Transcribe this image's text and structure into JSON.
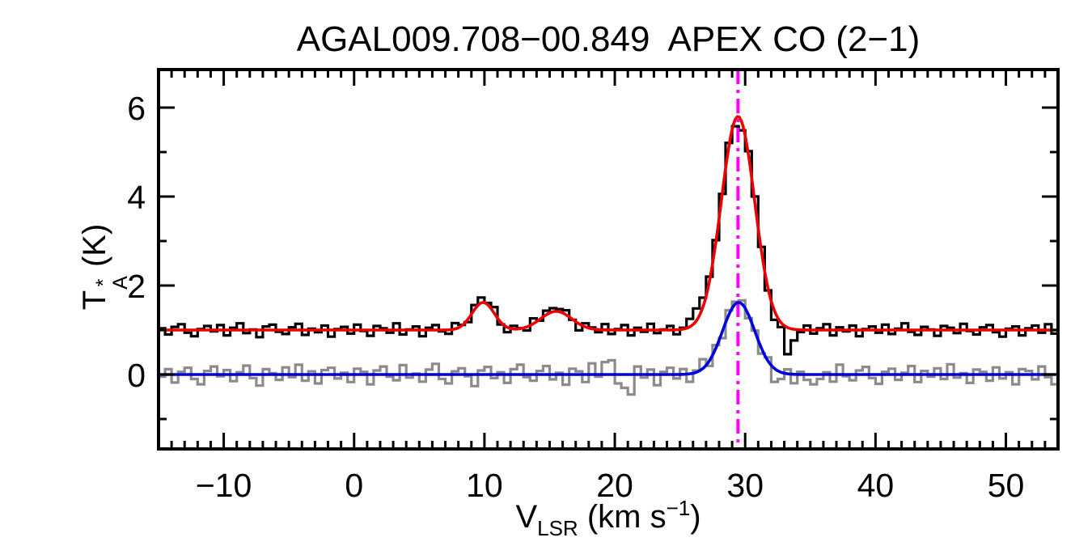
{
  "labels": {
    "xlabel": {
      "base": "V",
      "sub": "LSR",
      "mid": " (km s",
      "sup": "−1",
      "end": ")"
    },
    "ylabel": {
      "base": "T",
      "sup": "*",
      "sub": "A",
      "unit": " (K)"
    }
  },
  "chart_data": {
    "type": "line",
    "title": "AGAL009.708−00.849  APEX CO (2−1)",
    "xlabel": "V_LSR (km s−1)",
    "ylabel": "T*_A (K)",
    "xlim": [
      -15.0,
      54.0
    ],
    "ylim": [
      -1.673,
      6.855
    ],
    "x_major_ticks": [
      -10,
      0,
      10,
      20,
      30,
      40,
      50
    ],
    "x_minor_step": 1,
    "y_major_ticks": [
      0,
      2,
      4,
      6
    ],
    "y_minor_step": 1,
    "grid": false,
    "legend": false,
    "frame_color": "#000000",
    "x_start": -15.0,
    "x_step": 0.5,
    "vline": {
      "x": 29.45,
      "color": "#ff00ff",
      "style": "dash-dot",
      "name": "systemic-velocity-marker"
    },
    "series": [
      {
        "name": "observed-spectrum-gray",
        "style": "histogram",
        "color": "#8b8b8b",
        "baseline": 0.0,
        "gaussians": [
          {
            "center": 29.5,
            "amplitude": 1.62,
            "fwhm": 2.9
          }
        ],
        "noise": [
          -0.05,
          0.12,
          -0.18,
          0.06,
          0.15,
          -0.1,
          -0.22,
          0.08,
          0.18,
          -0.04,
          0.1,
          -0.15,
          0.05,
          0.2,
          -0.08,
          -0.25,
          0.12,
          0.03,
          -0.12,
          0.16,
          -0.06,
          0.22,
          -0.14,
          0.07,
          -0.2,
          0.1,
          0.15,
          -0.09,
          0.04,
          -0.17,
          0.13,
          0.06,
          -0.22,
          0.09,
          0.18,
          -0.05,
          -0.13,
          0.21,
          -0.07,
          0.02,
          -0.16,
          0.11,
          0.24,
          -0.1,
          -0.2,
          0.07,
          0.14,
          -0.04,
          -0.26,
          0.09,
          0.17,
          -0.08,
          0.05,
          -0.19,
          0.12,
          0.22,
          -0.06,
          -0.14,
          0.08,
          0.19,
          -0.11,
          0.04,
          -0.23,
          0.13,
          0.07,
          -0.17,
          0.25,
          -0.05,
          0.28,
          0.32,
          -0.2,
          -0.3,
          -0.45,
          0.18,
          -0.07,
          0.11,
          -0.24,
          0.06,
          0.15,
          -0.09,
          0.12,
          -0.18,
          0.04,
          0.21,
          -0.11,
          0.07,
          -0.15,
          0.1,
          0.05,
          0.08,
          -0.08,
          0.02,
          -0.12,
          0.08,
          -0.3,
          -0.15,
          0.1,
          -0.2,
          0.06,
          -0.12,
          -0.22,
          -0.1,
          0.05,
          -0.16,
          0.22,
          -0.04,
          -0.13,
          0.09,
          0.17,
          -0.08,
          -0.21,
          0.06,
          0.13,
          -0.12,
          0.04,
          0.19,
          -0.17,
          0.08,
          -0.05,
          0.14,
          -0.1,
          0.23,
          -0.07,
          0.03,
          -0.19,
          0.11,
          0.06,
          -0.14,
          0.16,
          -0.09,
          0.05,
          -0.22,
          0.12,
          0.08,
          -0.11,
          0.18,
          -0.06,
          -0.22
        ]
      },
      {
        "name": "observed-spectrum-black-offset-1K",
        "style": "histogram",
        "color": "#000000",
        "baseline": 1.0,
        "gaussians": [
          {
            "center": 9.9,
            "amplitude": 0.62,
            "fwhm": 2.0
          },
          {
            "center": 15.5,
            "amplitude": 0.42,
            "fwhm": 2.8
          },
          {
            "center": 29.45,
            "amplitude": 4.8,
            "fwhm": 3.0
          }
        ],
        "noise": [
          0.04,
          -0.1,
          0.07,
          0.13,
          -0.06,
          -0.14,
          0.02,
          0.09,
          -0.03,
          0.11,
          -0.12,
          0.05,
          0.15,
          -0.07,
          0.01,
          -0.16,
          0.08,
          0.12,
          -0.04,
          -0.09,
          0.06,
          0.14,
          -0.11,
          0.03,
          -0.05,
          0.1,
          -0.15,
          0.02,
          0.07,
          -0.08,
          0.12,
          -0.02,
          -0.13,
          0.09,
          0.04,
          -0.06,
          0.15,
          -0.1,
          0.01,
          0.08,
          -0.14,
          0.05,
          0.11,
          -0.03,
          -0.09,
          0.13,
          0.02,
          -0.07,
          0.1,
          0.12,
          0.04,
          0.14,
          -0.05,
          -0.11,
          0.07,
          0.01,
          -0.08,
          0.12,
          -0.03,
          0.09,
          0.08,
          0.06,
          0.1,
          -0.01,
          -0.15,
          0.08,
          0.03,
          -0.06,
          0.13,
          -0.09,
          0.02,
          0.11,
          -0.12,
          0.05,
          -0.04,
          0.14,
          -0.07,
          0.01,
          0.09,
          -0.1,
          0.03,
          0.18,
          0.28,
          0.22,
          0.12,
          0.05,
          -0.02,
          0.08,
          -0.16,
          -0.18,
          0.08,
          0.15,
          0.1,
          -0.05,
          -0.2,
          -0.1,
          -0.6,
          -0.25,
          -0.05,
          0.1,
          -0.08,
          0.04,
          0.13,
          -0.12,
          0.06,
          -0.03,
          0.1,
          -0.14,
          0.02,
          0.08,
          -0.06,
          0.12,
          -0.09,
          0.03,
          0.15,
          -0.04,
          -0.11,
          0.07,
          0.01,
          -0.13,
          0.09,
          0.05,
          -0.07,
          0.14,
          -0.02,
          -0.1,
          0.06,
          0.11,
          -0.05,
          -0.15,
          0.03,
          0.08,
          -0.12,
          0.04,
          0.1,
          -0.06,
          0.13,
          -0.08
        ]
      },
      {
        "name": "gaussian-fit-blue",
        "style": "smooth",
        "color": "#0000dd",
        "baseline": 0.0,
        "gaussians": [
          {
            "center": 29.5,
            "amplitude": 1.62,
            "fwhm": 2.9
          }
        ],
        "noise": []
      },
      {
        "name": "gaussian-fit-red-offset-1K",
        "style": "smooth",
        "color": "#ee0000",
        "baseline": 1.0,
        "gaussians": [
          {
            "center": 9.9,
            "amplitude": 0.62,
            "fwhm": 2.0
          },
          {
            "center": 15.5,
            "amplitude": 0.42,
            "fwhm": 2.8
          },
          {
            "center": 29.45,
            "amplitude": 4.8,
            "fwhm": 3.0
          }
        ],
        "noise": []
      }
    ]
  }
}
